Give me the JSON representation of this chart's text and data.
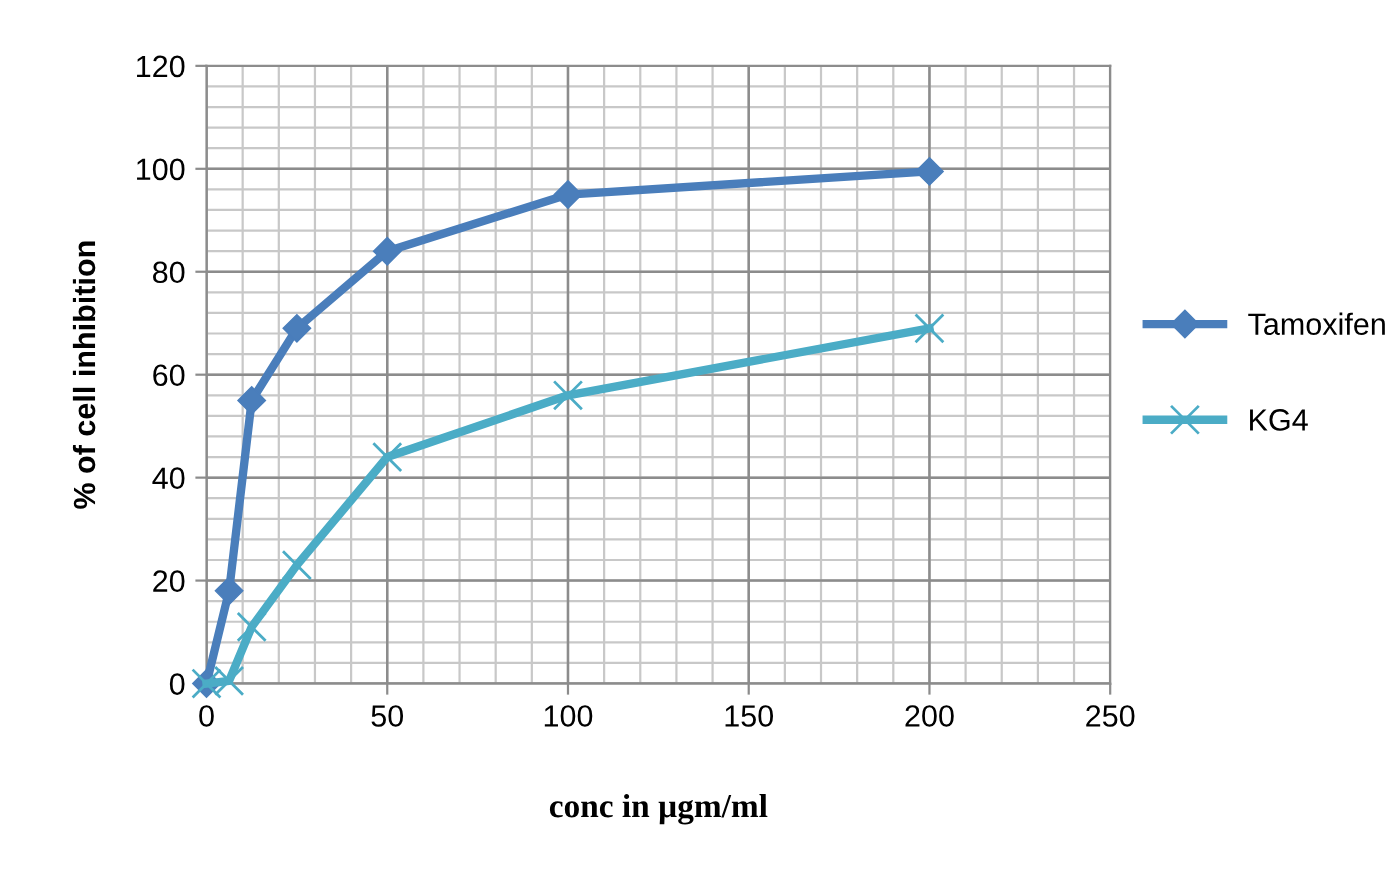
{
  "chart_data": {
    "type": "line",
    "xlabel": "conc in µgm/ml",
    "ylabel": "% of cell inhibition",
    "x": [
      0,
      6.25,
      12.5,
      25,
      50,
      100,
      200
    ],
    "series": [
      {
        "name": "Tamoxifen",
        "color": "#4a7ebb",
        "marker": "diamond",
        "values": [
          0,
          18,
          55,
          69,
          84,
          95,
          99.5
        ]
      },
      {
        "name": "KG4",
        "color": "#4bacc6",
        "marker": "cross",
        "values": [
          0,
          0.5,
          11,
          23,
          44,
          56,
          69
        ]
      }
    ],
    "xlim": [
      0,
      250
    ],
    "xticks": [
      0,
      50,
      100,
      150,
      200,
      250
    ],
    "ylim": [
      0,
      120
    ],
    "yticks": [
      0,
      20,
      40,
      60,
      80,
      100,
      120
    ],
    "grid": true,
    "legend": "right"
  }
}
